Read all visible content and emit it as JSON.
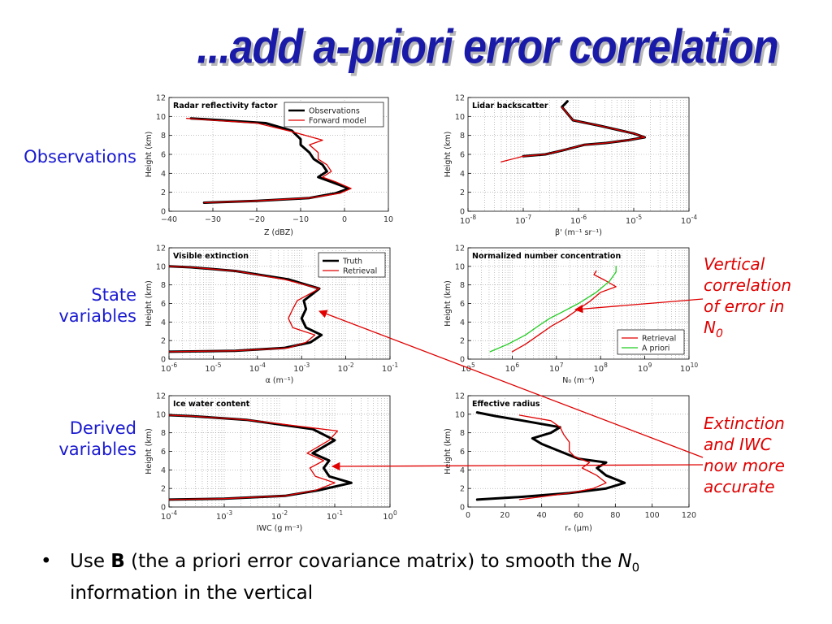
{
  "slide": {
    "title": "...add a-priori error correlation",
    "row_labels": {
      "observations": "Observations",
      "state": [
        "State",
        "variables"
      ],
      "derived": [
        "Derived",
        "variables"
      ]
    },
    "annotations": {
      "vertical": [
        "Vertical",
        "correlation",
        "of error in",
        "N",
        "0"
      ],
      "extinction": [
        "Extinction",
        "and IWC",
        "now more",
        "accurate"
      ]
    },
    "bullet": {
      "symbol": "•",
      "parts": [
        "Use ",
        "B",
        " (the a priori error covariance matrix) to smooth the ",
        "N",
        "0"
      ],
      "line2": "information in the vertical"
    },
    "colors": {
      "title": "#1a1aa8",
      "row_labels": "#1a1ad0",
      "annotations": "#e00000",
      "truth": "#000000",
      "model": "#e00000",
      "apriori": "#22cc22"
    }
  },
  "chart_data": [
    {
      "id": "radar",
      "type": "line",
      "title": "Radar reflectivity factor",
      "xlabel": "Z (dBZ)",
      "ylabel": "Height (km)",
      "xscale": "linear",
      "xlim": [
        -40,
        10
      ],
      "ylim": [
        0,
        12
      ],
      "xticks": [
        -40,
        -30,
        -20,
        -10,
        0,
        10
      ],
      "xticklabels": [
        "−40",
        "−30",
        "−20",
        "−10",
        "0",
        "10"
      ],
      "yticks": [
        0,
        2,
        4,
        6,
        8,
        10,
        12
      ],
      "legend": "top-right",
      "series": [
        {
          "name": "Observations",
          "color": "#000000",
          "width": 3,
          "points": [
            [
              -32,
              0.9
            ],
            [
              -20,
              1.1
            ],
            [
              -8,
              1.4
            ],
            [
              -2,
              1.9
            ],
            [
              1,
              2.4
            ],
            [
              -3,
              3.1
            ],
            [
              -6,
              3.6
            ],
            [
              -4,
              4.2
            ],
            [
              -5,
              4.9
            ],
            [
              -7,
              5.5
            ],
            [
              -8,
              6.2
            ],
            [
              -10,
              7.0
            ],
            [
              -10,
              7.6
            ],
            [
              -12,
              8.5
            ],
            [
              -18,
              9.3
            ],
            [
              -28,
              9.6
            ],
            [
              -35,
              9.8
            ]
          ]
        },
        {
          "name": "Forward model",
          "color": "#e00000",
          "width": 1.3,
          "points": [
            [
              -32,
              0.9
            ],
            [
              -20,
              1.1
            ],
            [
              -8,
              1.4
            ],
            [
              -1,
              1.9
            ],
            [
              1.5,
              2.4
            ],
            [
              -2,
              3.1
            ],
            [
              -5,
              3.6
            ],
            [
              -3,
              4.2
            ],
            [
              -4,
              4.9
            ],
            [
              -6,
              5.5
            ],
            [
              -6,
              6.2
            ],
            [
              -8,
              7.0
            ],
            [
              -5,
              7.5
            ],
            [
              -12,
              8.4
            ],
            [
              -20,
              9.3
            ],
            [
              -30,
              9.6
            ],
            [
              -36,
              9.8
            ]
          ]
        }
      ]
    },
    {
      "id": "lidar",
      "type": "line",
      "title": "Lidar backscatter",
      "xlabel": "β' (m⁻¹ sr⁻¹)",
      "ylabel": "Height (km)",
      "xscale": "log",
      "xlim": [
        -8,
        -4
      ],
      "ylim": [
        0,
        12
      ],
      "xticks": [
        -8,
        -7,
        -6,
        -5,
        -4
      ],
      "yticks": [
        0,
        2,
        4,
        6,
        8,
        10,
        12
      ],
      "legend": "none",
      "series": [
        {
          "name": "",
          "color": "#000000",
          "width": 3,
          "points": [
            [
              -7.0,
              5.8
            ],
            [
              -6.6,
              6.0
            ],
            [
              -6.3,
              6.4
            ],
            [
              -5.9,
              7.0
            ],
            [
              -5.5,
              7.2
            ],
            [
              -5.1,
              7.5
            ],
            [
              -4.8,
              7.8
            ],
            [
              -5.0,
              8.2
            ],
            [
              -5.6,
              9.0
            ],
            [
              -6.1,
              9.6
            ],
            [
              -6.2,
              10.3
            ],
            [
              -6.3,
              11.0
            ],
            [
              -6.2,
              11.6
            ]
          ]
        },
        {
          "name": "",
          "color": "#e00000",
          "width": 1.3,
          "points": [
            [
              -7.4,
              5.2
            ],
            [
              -7.0,
              5.8
            ],
            [
              -6.6,
              6.0
            ],
            [
              -6.3,
              6.4
            ],
            [
              -5.9,
              7.0
            ],
            [
              -5.5,
              7.2
            ],
            [
              -5.1,
              7.5
            ],
            [
              -4.8,
              7.8
            ],
            [
              -5.0,
              8.2
            ],
            [
              -5.6,
              9.0
            ],
            [
              -6.1,
              9.6
            ],
            [
              -6.2,
              10.3
            ],
            [
              -6.3,
              11.0
            ]
          ]
        }
      ]
    },
    {
      "id": "extinction",
      "type": "line",
      "title": "Visible extinction",
      "xlabel": "α (m⁻¹)",
      "ylabel": "Height (km)",
      "xscale": "log",
      "xlim": [
        -6,
        -1
      ],
      "ylim": [
        0,
        12
      ],
      "xticks": [
        -6,
        -5,
        -4,
        -3,
        -2,
        -1
      ],
      "yticks": [
        0,
        2,
        4,
        6,
        8,
        10,
        12
      ],
      "legend": "top-right",
      "series": [
        {
          "name": "Truth",
          "color": "#000000",
          "width": 3,
          "points": [
            [
              -6,
              0.8
            ],
            [
              -4.5,
              0.9
            ],
            [
              -3.4,
              1.2
            ],
            [
              -2.8,
              1.8
            ],
            [
              -2.55,
              2.6
            ],
            [
              -2.9,
              3.4
            ],
            [
              -3.0,
              4.4
            ],
            [
              -2.9,
              5.4
            ],
            [
              -2.95,
              6.3
            ],
            [
              -2.6,
              7.6
            ],
            [
              -3.3,
              8.6
            ],
            [
              -4.5,
              9.5
            ],
            [
              -5.5,
              9.9
            ],
            [
              -6,
              10.0
            ]
          ]
        },
        {
          "name": "Retrieval",
          "color": "#e00000",
          "width": 1.3,
          "points": [
            [
              -6,
              0.8
            ],
            [
              -4.5,
              0.9
            ],
            [
              -3.3,
              1.2
            ],
            [
              -2.9,
              1.8
            ],
            [
              -2.7,
              2.6
            ],
            [
              -3.2,
              3.4
            ],
            [
              -3.3,
              4.4
            ],
            [
              -3.2,
              5.4
            ],
            [
              -3.1,
              6.3
            ],
            [
              -2.6,
              7.6
            ],
            [
              -3.4,
              8.6
            ],
            [
              -4.5,
              9.5
            ],
            [
              -5.5,
              9.9
            ],
            [
              -6,
              10.0
            ]
          ]
        }
      ]
    },
    {
      "id": "n0",
      "type": "line",
      "title": "Normalized number concentration",
      "xlabel": "N₀ (m⁻⁴)",
      "ylabel": "Height (km)",
      "xscale": "log",
      "xlim": [
        5,
        10
      ],
      "ylim": [
        0,
        12
      ],
      "xticks": [
        5,
        6,
        7,
        8,
        9,
        10
      ],
      "yticks": [
        0,
        2,
        4,
        6,
        8,
        10,
        12
      ],
      "legend": "bottom-right",
      "series": [
        {
          "name": "Retrieval",
          "color": "#e00000",
          "width": 1.3,
          "points": [
            [
              6.0,
              0.8
            ],
            [
              6.3,
              1.6
            ],
            [
              6.6,
              2.6
            ],
            [
              6.9,
              3.6
            ],
            [
              7.2,
              4.4
            ],
            [
              7.5,
              5.4
            ],
            [
              7.75,
              6.2
            ],
            [
              8.0,
              7.2
            ],
            [
              8.35,
              7.8
            ],
            [
              8.1,
              8.5
            ],
            [
              7.85,
              9.1
            ],
            [
              7.9,
              9.5
            ]
          ]
        },
        {
          "name": "A priori",
          "color": "#22cc22",
          "width": 1.3,
          "points": [
            [
              5.5,
              0.8
            ],
            [
              5.9,
              1.6
            ],
            [
              6.3,
              2.6
            ],
            [
              6.6,
              3.6
            ],
            [
              6.85,
              4.4
            ],
            [
              7.1,
              5.0
            ],
            [
              7.5,
              6.0
            ],
            [
              7.9,
              7.2
            ],
            [
              8.2,
              8.4
            ],
            [
              8.35,
              9.4
            ],
            [
              8.35,
              10.0
            ]
          ]
        }
      ]
    },
    {
      "id": "iwc",
      "type": "line",
      "title": "Ice water content",
      "xlabel": "IWC (g m⁻³)",
      "ylabel": "Height (km)",
      "xscale": "log",
      "xlim": [
        -4,
        0
      ],
      "ylim": [
        0,
        12
      ],
      "xticks": [
        -4,
        -3,
        -2,
        -1,
        0
      ],
      "yticks": [
        0,
        2,
        4,
        6,
        8,
        10,
        12
      ],
      "legend": "none",
      "series": [
        {
          "name": "",
          "color": "#000000",
          "width": 3,
          "points": [
            [
              -4,
              0.8
            ],
            [
              -3,
              0.9
            ],
            [
              -1.9,
              1.2
            ],
            [
              -1.3,
              1.8
            ],
            [
              -0.7,
              2.6
            ],
            [
              -1.1,
              3.3
            ],
            [
              -1.2,
              4.2
            ],
            [
              -1.1,
              5.0
            ],
            [
              -1.4,
              5.8
            ],
            [
              -1.0,
              7.2
            ],
            [
              -1.4,
              8.4
            ],
            [
              -2.6,
              9.4
            ],
            [
              -3.6,
              9.8
            ],
            [
              -4,
              9.9
            ]
          ]
        },
        {
          "name": "",
          "color": "#e00000",
          "width": 1.3,
          "points": [
            [
              -4,
              0.8
            ],
            [
              -3,
              0.9
            ],
            [
              -1.9,
              1.2
            ],
            [
              -1.35,
              1.8
            ],
            [
              -1.0,
              2.6
            ],
            [
              -1.35,
              3.3
            ],
            [
              -1.45,
              4.2
            ],
            [
              -1.2,
              5.0
            ],
            [
              -1.5,
              5.8
            ],
            [
              -1.1,
              7.2
            ],
            [
              -0.95,
              8.2
            ],
            [
              -2.6,
              9.4
            ],
            [
              -3.6,
              9.8
            ],
            [
              -4,
              9.9
            ]
          ]
        }
      ]
    },
    {
      "id": "radius",
      "type": "line",
      "title": "Effective radius",
      "xlabel": "rₑ (μm)",
      "ylabel": "Height (km)",
      "xscale": "linear",
      "xlim": [
        0,
        120
      ],
      "ylim": [
        0,
        12
      ],
      "xticks": [
        0,
        20,
        40,
        60,
        80,
        100,
        120
      ],
      "yticks": [
        0,
        2,
        4,
        6,
        8,
        10,
        12
      ],
      "legend": "none",
      "series": [
        {
          "name": "",
          "color": "#000000",
          "width": 3,
          "points": [
            [
              5,
              0.8
            ],
            [
              30,
              1.1
            ],
            [
              55,
              1.5
            ],
            [
              75,
              2.0
            ],
            [
              85,
              2.6
            ],
            [
              75,
              3.4
            ],
            [
              70,
              4.2
            ],
            [
              75,
              4.8
            ],
            [
              60,
              5.2
            ],
            [
              50,
              6.0
            ],
            [
              40,
              6.8
            ],
            [
              35,
              7.4
            ],
            [
              45,
              8.0
            ],
            [
              50,
              8.6
            ],
            [
              30,
              9.3
            ],
            [
              15,
              9.8
            ],
            [
              5,
              10.2
            ]
          ]
        },
        {
          "name": "",
          "color": "#e00000",
          "width": 1.3,
          "points": [
            [
              28,
              0.8
            ],
            [
              40,
              1.1
            ],
            [
              55,
              1.5
            ],
            [
              68,
              2.0
            ],
            [
              75,
              2.6
            ],
            [
              70,
              3.4
            ],
            [
              62,
              4.2
            ],
            [
              66,
              4.8
            ],
            [
              58,
              5.4
            ],
            [
              55,
              6.0
            ],
            [
              55,
              7.0
            ],
            [
              52,
              7.8
            ],
            [
              50,
              8.6
            ],
            [
              45,
              9.3
            ],
            [
              28,
              9.9
            ]
          ]
        }
      ]
    }
  ]
}
